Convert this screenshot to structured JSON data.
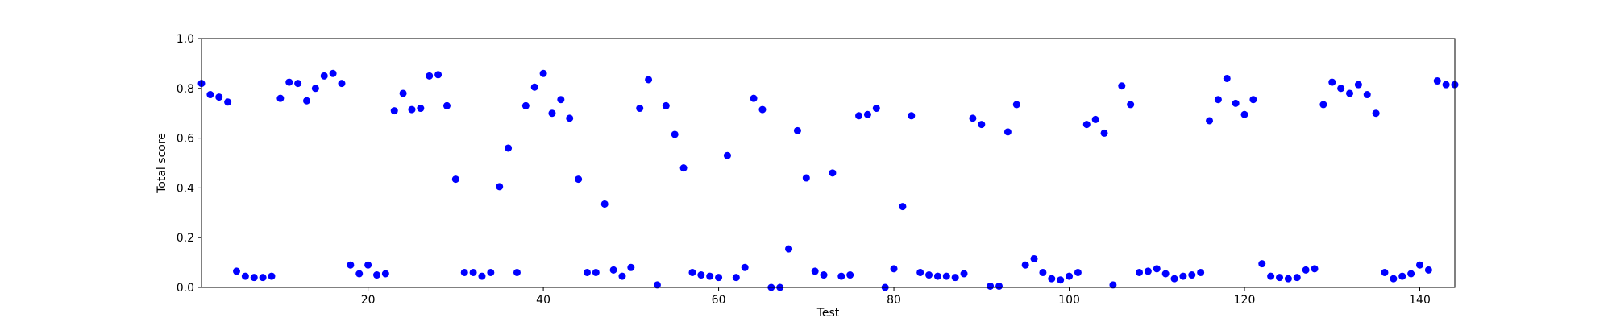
{
  "chart_data": {
    "type": "scatter",
    "xlabel": "Test",
    "ylabel": "Total score",
    "xlim": [
      1,
      144
    ],
    "ylim": [
      0,
      1.0
    ],
    "xticks": [
      20,
      40,
      60,
      80,
      100,
      120,
      140
    ],
    "xtick_labels": [
      "20",
      "40",
      "60",
      "80",
      "100",
      "120",
      "140"
    ],
    "yticks": [
      0.0,
      0.2,
      0.4,
      0.6,
      0.8,
      1.0
    ],
    "ytick_labels": [
      "0.0",
      "0.2",
      "0.4",
      "0.6",
      "0.8",
      "1.0"
    ],
    "grid": false,
    "marker_color": "#0000ff",
    "series": [
      {
        "points": [
          [
            1,
            0.82
          ],
          [
            2,
            0.775
          ],
          [
            3,
            0.765
          ],
          [
            4,
            0.745
          ],
          [
            5,
            0.065
          ],
          [
            6,
            0.045
          ],
          [
            7,
            0.04
          ],
          [
            8,
            0.04
          ],
          [
            9,
            0.045
          ],
          [
            10,
            0.76
          ],
          [
            11,
            0.825
          ],
          [
            12,
            0.82
          ],
          [
            13,
            0.75
          ],
          [
            14,
            0.8
          ],
          [
            15,
            0.85
          ],
          [
            16,
            0.86
          ],
          [
            17,
            0.82
          ],
          [
            18,
            0.09
          ],
          [
            19,
            0.055
          ],
          [
            20,
            0.09
          ],
          [
            21,
            0.05
          ],
          [
            22,
            0.055
          ],
          [
            23,
            0.71
          ],
          [
            24,
            0.78
          ],
          [
            25,
            0.715
          ],
          [
            26,
            0.72
          ],
          [
            27,
            0.85
          ],
          [
            28,
            0.855
          ],
          [
            29,
            0.73
          ],
          [
            30,
            0.435
          ],
          [
            31,
            0.06
          ],
          [
            32,
            0.06
          ],
          [
            33,
            0.045
          ],
          [
            34,
            0.06
          ],
          [
            35,
            0.405
          ],
          [
            36,
            0.56
          ],
          [
            37,
            0.06
          ],
          [
            38,
            0.73
          ],
          [
            39,
            0.805
          ],
          [
            40,
            0.86
          ],
          [
            41,
            0.7
          ],
          [
            42,
            0.755
          ],
          [
            43,
            0.68
          ],
          [
            44,
            0.435
          ],
          [
            45,
            0.06
          ],
          [
            46,
            0.06
          ],
          [
            47,
            0.335
          ],
          [
            48,
            0.07
          ],
          [
            49,
            0.045
          ],
          [
            50,
            0.08
          ],
          [
            51,
            0.72
          ],
          [
            52,
            0.835
          ],
          [
            53,
            0.01
          ],
          [
            54,
            0.73
          ],
          [
            55,
            0.615
          ],
          [
            56,
            0.48
          ],
          [
            57,
            0.06
          ],
          [
            58,
            0.05
          ],
          [
            59,
            0.045
          ],
          [
            60,
            0.04
          ],
          [
            61,
            0.53
          ],
          [
            62,
            0.04
          ],
          [
            63,
            0.08
          ],
          [
            64,
            0.76
          ],
          [
            65,
            0.715
          ],
          [
            66,
            0.0
          ],
          [
            67,
            0.0
          ],
          [
            68,
            0.155
          ],
          [
            69,
            0.63
          ],
          [
            70,
            0.44
          ],
          [
            71,
            0.065
          ],
          [
            72,
            0.05
          ],
          [
            73,
            0.46
          ],
          [
            74,
            0.045
          ],
          [
            75,
            0.05
          ],
          [
            76,
            0.69
          ],
          [
            77,
            0.695
          ],
          [
            78,
            0.72
          ],
          [
            79,
            0.0
          ],
          [
            80,
            0.075
          ],
          [
            81,
            0.325
          ],
          [
            82,
            0.69
          ],
          [
            83,
            0.06
          ],
          [
            84,
            0.05
          ],
          [
            85,
            0.045
          ],
          [
            86,
            0.045
          ],
          [
            87,
            0.04
          ],
          [
            88,
            0.055
          ],
          [
            89,
            0.68
          ],
          [
            90,
            0.655
          ],
          [
            91,
            0.005
          ],
          [
            92,
            0.005
          ],
          [
            93,
            0.625
          ],
          [
            94,
            0.735
          ],
          [
            95,
            0.09
          ],
          [
            96,
            0.115
          ],
          [
            97,
            0.06
          ],
          [
            98,
            0.035
          ],
          [
            99,
            0.03
          ],
          [
            100,
            0.045
          ],
          [
            101,
            0.06
          ],
          [
            102,
            0.655
          ],
          [
            103,
            0.675
          ],
          [
            104,
            0.62
          ],
          [
            105,
            0.01
          ],
          [
            106,
            0.81
          ],
          [
            107,
            0.735
          ],
          [
            108,
            0.06
          ],
          [
            109,
            0.065
          ],
          [
            110,
            0.075
          ],
          [
            111,
            0.055
          ],
          [
            112,
            0.035
          ],
          [
            113,
            0.045
          ],
          [
            114,
            0.05
          ],
          [
            115,
            0.06
          ],
          [
            116,
            0.67
          ],
          [
            117,
            0.755
          ],
          [
            118,
            0.84
          ],
          [
            119,
            0.74
          ],
          [
            120,
            0.695
          ],
          [
            121,
            0.755
          ],
          [
            122,
            0.095
          ],
          [
            123,
            0.045
          ],
          [
            124,
            0.04
          ],
          [
            125,
            0.035
          ],
          [
            126,
            0.04
          ],
          [
            127,
            0.07
          ],
          [
            128,
            0.075
          ],
          [
            129,
            0.735
          ],
          [
            130,
            0.825
          ],
          [
            131,
            0.8
          ],
          [
            132,
            0.78
          ],
          [
            133,
            0.815
          ],
          [
            134,
            0.775
          ],
          [
            135,
            0.7
          ],
          [
            136,
            0.06
          ],
          [
            137,
            0.035
          ],
          [
            138,
            0.045
          ],
          [
            139,
            0.055
          ],
          [
            140,
            0.09
          ],
          [
            141,
            0.07
          ],
          [
            142,
            0.83
          ],
          [
            143,
            0.815
          ],
          [
            144,
            0.815
          ]
        ]
      }
    ]
  }
}
